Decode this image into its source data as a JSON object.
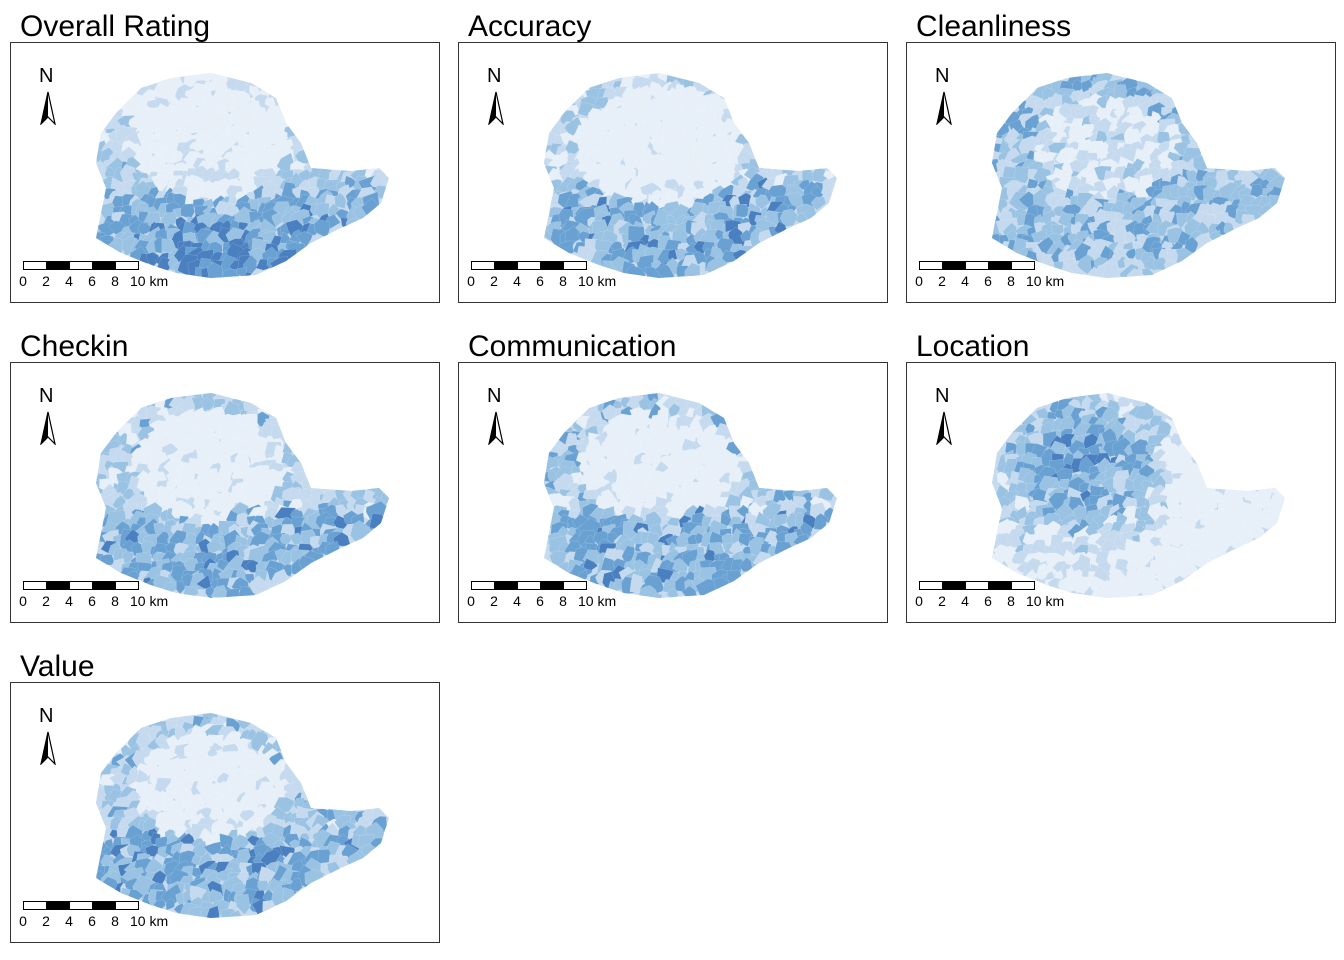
{
  "panels": [
    {
      "title": "Overall Rating",
      "pattern": "south"
    },
    {
      "title": "Accuracy",
      "pattern": "south-north"
    },
    {
      "title": "Cleanliness",
      "pattern": "mixed"
    },
    {
      "title": "Checkin",
      "pattern": "south-mixed"
    },
    {
      "title": "Communication",
      "pattern": "south-mixed"
    },
    {
      "title": "Location",
      "pattern": "center"
    },
    {
      "title": "Value",
      "pattern": "south-mixed"
    }
  ],
  "north_arrow_label": "N",
  "scale_labels": [
    "0",
    "2",
    "4",
    "6",
    "8",
    "10 km"
  ],
  "colors": {
    "palette": [
      "#e7eff8",
      "#c5daee",
      "#9ac3e3",
      "#6aa1d3",
      "#4a7fc0"
    ],
    "border": "#333333",
    "background": "#ffffff"
  }
}
